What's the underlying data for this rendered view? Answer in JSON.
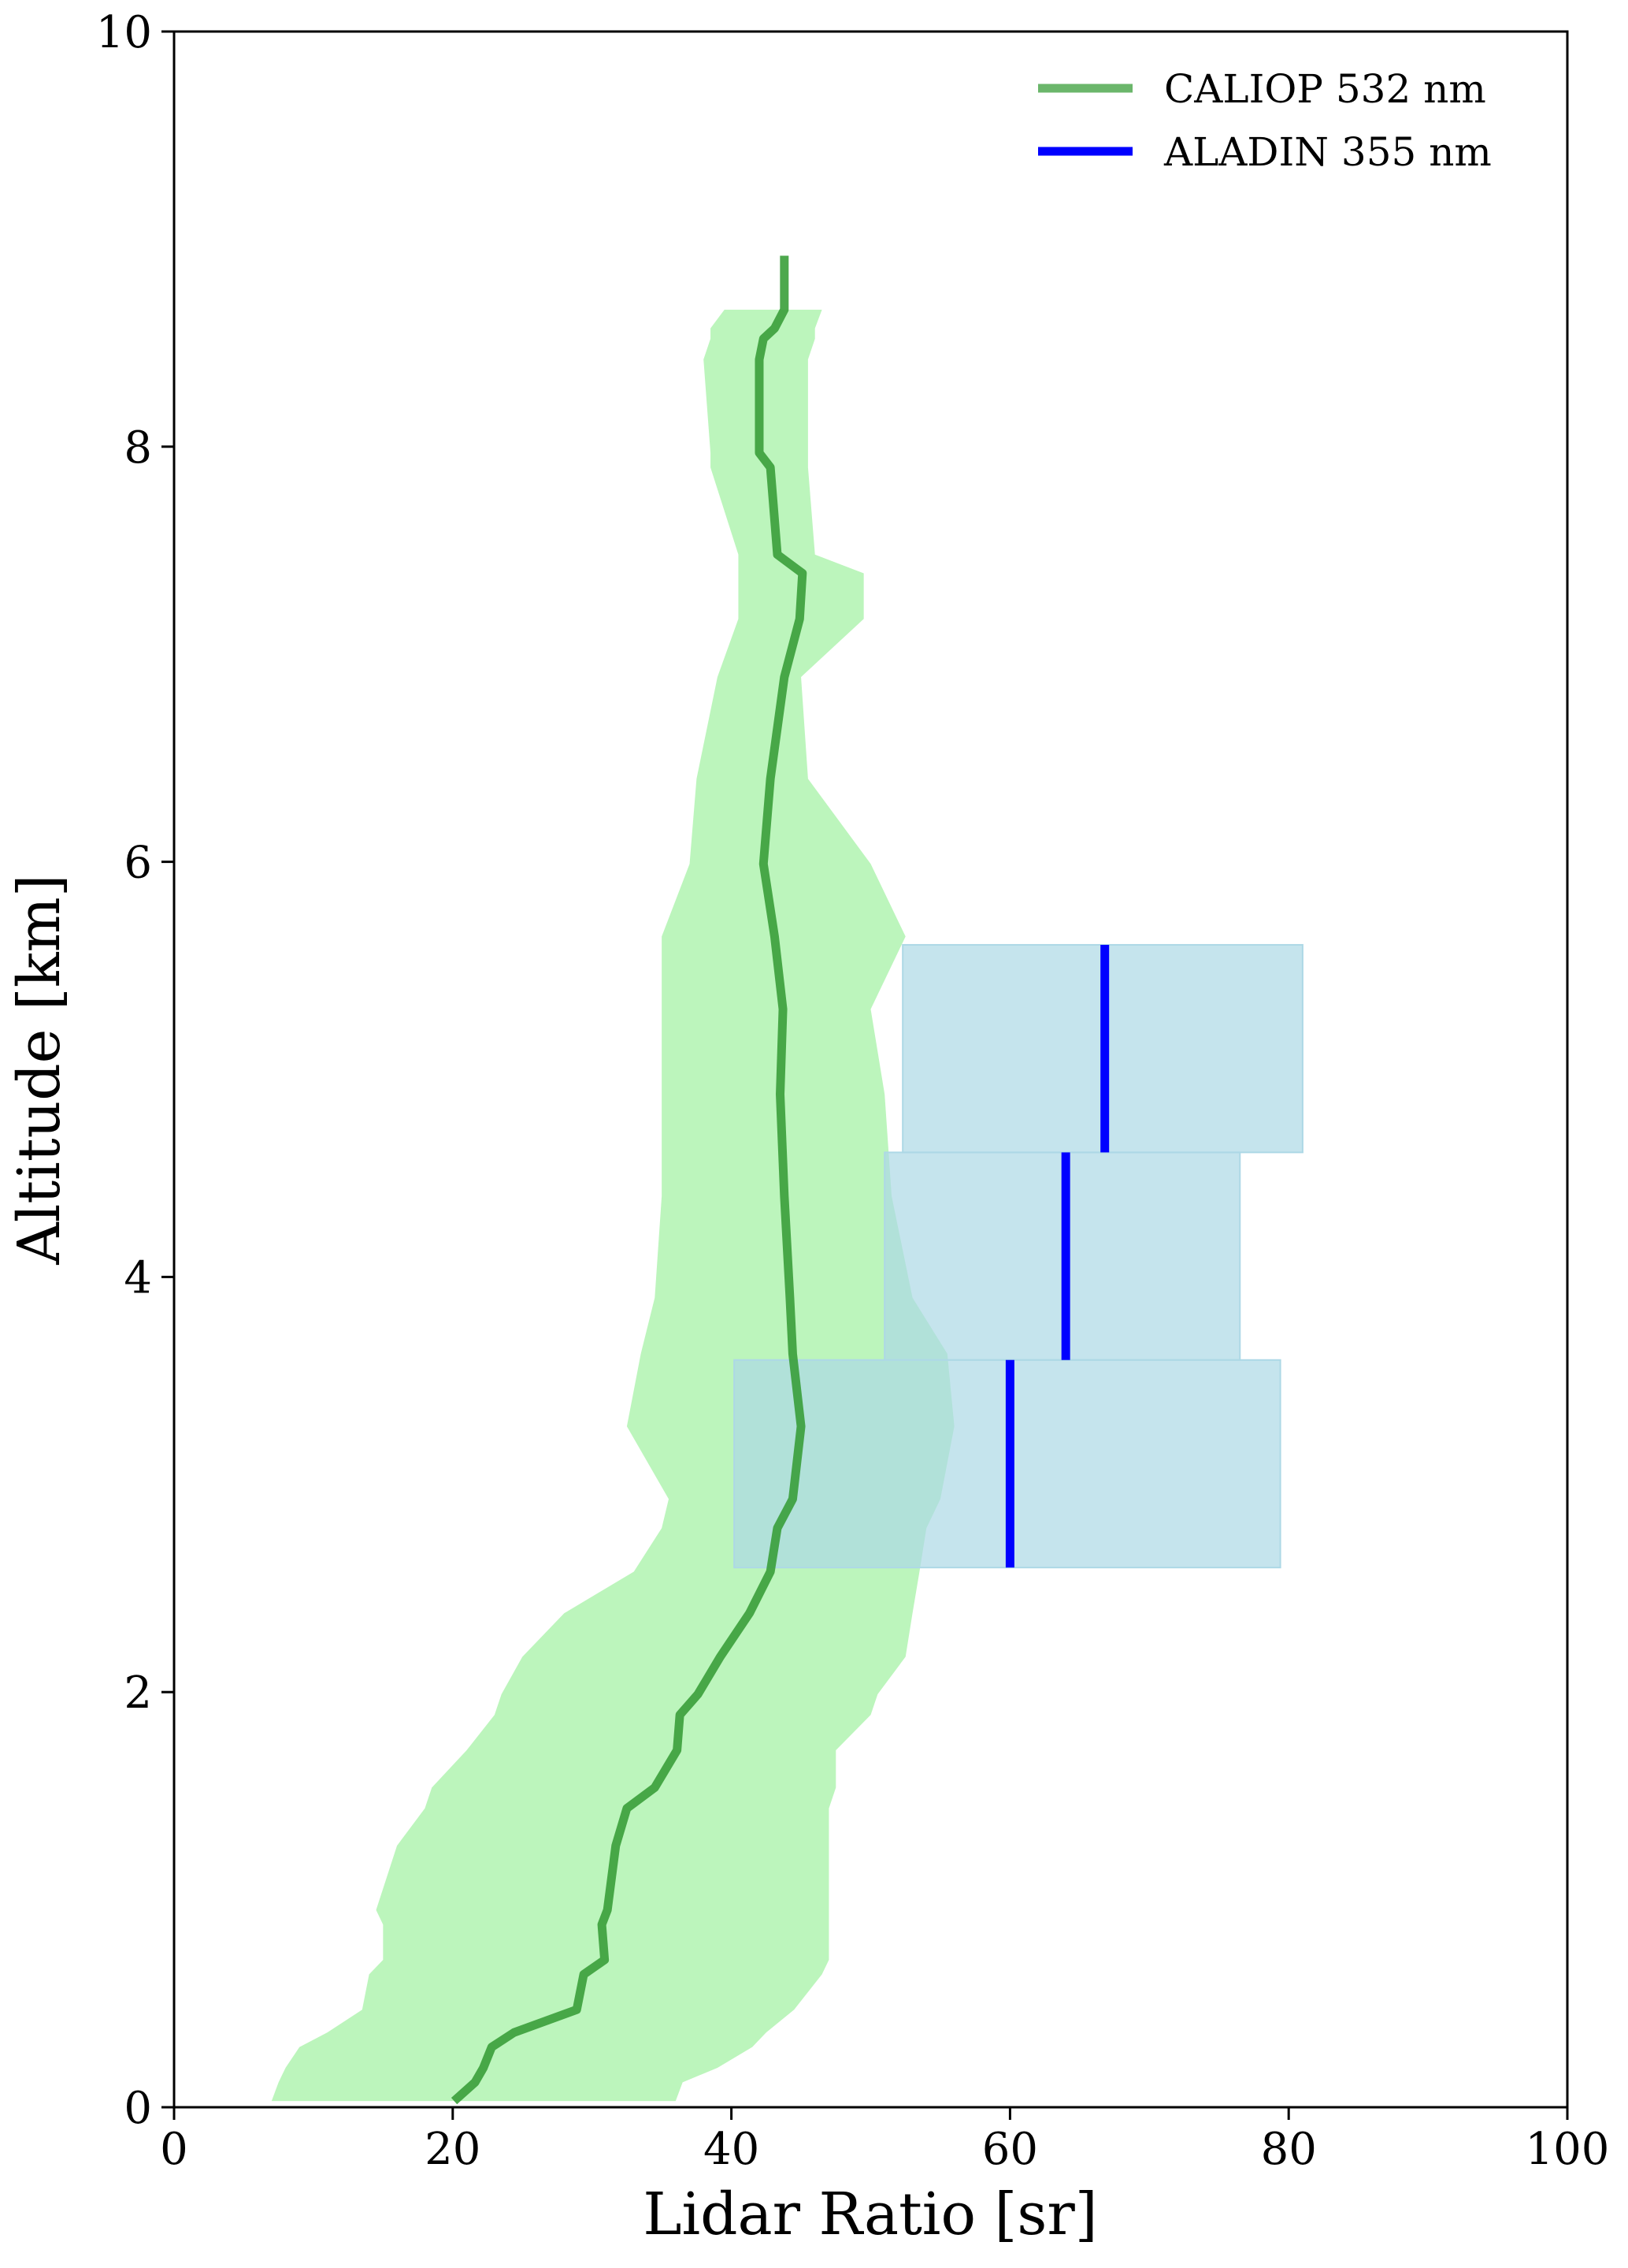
{
  "chart_data": {
    "type": "profile",
    "xlabel": "Lidar Ratio [sr]",
    "ylabel": "Altitude [km]",
    "xlim": [
      0,
      100
    ],
    "xticks": [
      0,
      20,
      40,
      60,
      80,
      100
    ],
    "ylim": [
      0,
      10
    ],
    "yticks": [
      0,
      2,
      4,
      6,
      8,
      10
    ],
    "legend": "upper right",
    "band": {
      "color": "#90ee90",
      "y": [
        0.03,
        0.12,
        0.19,
        0.29,
        0.36,
        0.47,
        0.64,
        0.71,
        0.88,
        0.95,
        1.26,
        1.44,
        1.54,
        1.72,
        1.89,
        1.99,
        2.17,
        2.38,
        2.58,
        2.79,
        2.93,
        3.28,
        3.63,
        3.9,
        4.39,
        4.88,
        5.29,
        5.64,
        5.99,
        6.4,
        6.89,
        7.17,
        7.39,
        7.48,
        7.9,
        7.97,
        8.42,
        8.52,
        8.57,
        8.66
      ],
      "lower": [
        7,
        7.5,
        8,
        9,
        11,
        13.5,
        14,
        15,
        15,
        14.5,
        16,
        18,
        18.5,
        21,
        23,
        23.5,
        25,
        28,
        33,
        35,
        35.5,
        32.5,
        33.5,
        34.5,
        35,
        35,
        35,
        35,
        37,
        37.5,
        39,
        40.5,
        40.5,
        40.5,
        38.5,
        38.5,
        38,
        38.5,
        38.5,
        39.5
      ],
      "upper": [
        36,
        36.5,
        39,
        41.5,
        42.5,
        44.5,
        46.5,
        47,
        47,
        47,
        47,
        47,
        47.5,
        47.5,
        50,
        50.5,
        52.5,
        53,
        53.5,
        54,
        55,
        56,
        55.5,
        53,
        51.5,
        51,
        50,
        52.5,
        50,
        45.5,
        45,
        49.5,
        49.5,
        46,
        45.5,
        45.5,
        45.5,
        46,
        46,
        46.5
      ]
    },
    "series": [
      {
        "name": "CALIOP 532 nm",
        "color": "#3a9e3a",
        "y": [
          0.03,
          0.12,
          0.19,
          0.29,
          0.36,
          0.47,
          0.64,
          0.71,
          0.88,
          0.95,
          1.26,
          1.44,
          1.54,
          1.72,
          1.89,
          1.99,
          2.17,
          2.38,
          2.58,
          2.79,
          2.93,
          3.28,
          3.63,
          3.9,
          4.39,
          4.88,
          5.29,
          5.64,
          5.99,
          6.4,
          6.89,
          7.17,
          7.39,
          7.48,
          7.9,
          7.97,
          8.42,
          8.52,
          8.57,
          8.66,
          8.92
        ],
        "values": [
          20.1,
          21.6,
          22.2,
          22.8,
          24.4,
          28.9,
          29.4,
          30.9,
          30.7,
          31.1,
          31.7,
          32.5,
          34.5,
          36.1,
          36.3,
          37.6,
          39.2,
          41.3,
          42.8,
          43.3,
          44.4,
          45,
          44.4,
          44.2,
          43.8,
          43.5,
          43.7,
          43.1,
          42.3,
          42.8,
          43.8,
          44.9,
          45.1,
          43.3,
          42.8,
          42,
          42,
          42.3,
          43.1,
          43.8,
          43.8
        ]
      },
      {
        "name": "ALADIN 355 nm",
        "color": "#0000ff",
        "box_color": "#add8e6",
        "y_bottom": [
          2.6,
          3.6,
          4.6
        ],
        "y_top": [
          3.6,
          4.6,
          5.6
        ],
        "values": [
          60,
          64,
          66.8
        ],
        "lower": [
          40.2,
          51,
          52.3
        ],
        "upper": [
          79.4,
          76.5,
          81
        ]
      }
    ]
  }
}
